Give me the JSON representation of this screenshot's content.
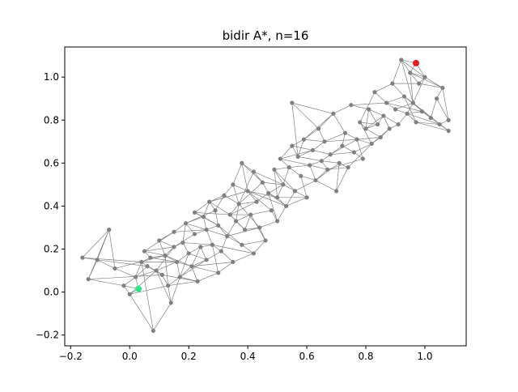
{
  "chart_data": {
    "type": "scatter",
    "title": "bidir A*, n=16",
    "xlabel": "",
    "ylabel": "",
    "xlim": [
      -0.22,
      1.14
    ],
    "ylim": [
      -0.25,
      1.14
    ],
    "xticks": [
      -0.2,
      0.0,
      0.2,
      0.4,
      0.6,
      0.8,
      1.0
    ],
    "yticks": [
      -0.2,
      0.0,
      0.2,
      0.4,
      0.6,
      0.8,
      1.0
    ],
    "xtick_labels": [
      "−0.2",
      "0.0",
      "0.2",
      "0.4",
      "0.6",
      "0.8",
      "1.0"
    ],
    "ytick_labels": [
      "−0.2",
      "0.0",
      "0.2",
      "0.4",
      "0.6",
      "0.8",
      "1.0"
    ],
    "grid": false,
    "colors": {
      "node": "#808080",
      "edge": "#808080",
      "start": "#2ee58a",
      "goal": "#e02020"
    },
    "start": {
      "x": 0.03,
      "y": 0.015
    },
    "goal": {
      "x": 0.97,
      "y": 1.065
    },
    "nodes": [
      [
        -0.16,
        0.16
      ],
      [
        -0.14,
        0.06
      ],
      [
        -0.11,
        0.15
      ],
      [
        -0.07,
        0.29
      ],
      [
        -0.05,
        0.11
      ],
      [
        -0.02,
        0.03
      ],
      [
        0.0,
        -0.01
      ],
      [
        0.02,
        0.07
      ],
      [
        0.04,
        0.14
      ],
      [
        0.05,
        0.19
      ],
      [
        0.06,
        0.12
      ],
      [
        0.07,
        0.16
      ],
      [
        0.08,
        -0.18
      ],
      [
        0.09,
        0.1
      ],
      [
        0.1,
        0.24
      ],
      [
        0.11,
        0.08
      ],
      [
        0.12,
        0.17
      ],
      [
        0.13,
        0.03
      ],
      [
        0.14,
        -0.05
      ],
      [
        0.15,
        0.21
      ],
      [
        0.15,
        0.28
      ],
      [
        0.16,
        0.14
      ],
      [
        0.17,
        0.07
      ],
      [
        0.18,
        0.23
      ],
      [
        0.19,
        0.32
      ],
      [
        0.2,
        0.18
      ],
      [
        0.21,
        0.12
      ],
      [
        0.22,
        0.37
      ],
      [
        0.22,
        0.27
      ],
      [
        0.23,
        0.05
      ],
      [
        0.24,
        0.21
      ],
      [
        0.25,
        0.35
      ],
      [
        0.26,
        0.15
      ],
      [
        0.26,
        0.29
      ],
      [
        0.27,
        0.42
      ],
      [
        0.28,
        0.22
      ],
      [
        0.29,
        0.38
      ],
      [
        0.3,
        0.09
      ],
      [
        0.3,
        0.31
      ],
      [
        0.31,
        0.19
      ],
      [
        0.32,
        0.45
      ],
      [
        0.33,
        0.26
      ],
      [
        0.34,
        0.36
      ],
      [
        0.35,
        0.14
      ],
      [
        0.35,
        0.5
      ],
      [
        0.36,
        0.33
      ],
      [
        0.37,
        0.41
      ],
      [
        0.38,
        0.22
      ],
      [
        0.38,
        0.6
      ],
      [
        0.39,
        0.29
      ],
      [
        0.4,
        0.47
      ],
      [
        0.41,
        0.36
      ],
      [
        0.42,
        0.18
      ],
      [
        0.42,
        0.56
      ],
      [
        0.43,
        0.42
      ],
      [
        0.44,
        0.3
      ],
      [
        0.45,
        0.51
      ],
      [
        0.46,
        0.24
      ],
      [
        0.47,
        0.46
      ],
      [
        0.48,
        0.38
      ],
      [
        0.49,
        0.57
      ],
      [
        0.5,
        0.44
      ],
      [
        0.5,
        0.33
      ],
      [
        0.51,
        0.62
      ],
      [
        0.52,
        0.5
      ],
      [
        0.53,
        0.4
      ],
      [
        0.54,
        0.58
      ],
      [
        0.55,
        0.68
      ],
      [
        0.55,
        0.88
      ],
      [
        0.56,
        0.47
      ],
      [
        0.57,
        0.63
      ],
      [
        0.58,
        0.54
      ],
      [
        0.59,
        0.71
      ],
      [
        0.6,
        0.44
      ],
      [
        0.61,
        0.59
      ],
      [
        0.62,
        0.66
      ],
      [
        0.63,
        0.52
      ],
      [
        0.64,
        0.76
      ],
      [
        0.65,
        0.61
      ],
      [
        0.66,
        0.7
      ],
      [
        0.67,
        0.57
      ],
      [
        0.68,
        0.64
      ],
      [
        0.69,
        0.83
      ],
      [
        0.7,
        0.47
      ],
      [
        0.71,
        0.6
      ],
      [
        0.72,
        0.68
      ],
      [
        0.73,
        0.74
      ],
      [
        0.74,
        0.58
      ],
      [
        0.75,
        0.87
      ],
      [
        0.76,
        0.65
      ],
      [
        0.77,
        0.71
      ],
      [
        0.78,
        0.79
      ],
      [
        0.79,
        0.62
      ],
      [
        0.8,
        0.76
      ],
      [
        0.81,
        0.85
      ],
      [
        0.82,
        0.69
      ],
      [
        0.83,
        0.93
      ],
      [
        0.84,
        0.78
      ],
      [
        0.85,
        0.72
      ],
      [
        0.86,
        0.82
      ],
      [
        0.87,
        0.88
      ],
      [
        0.88,
        0.76
      ],
      [
        0.89,
        0.97
      ],
      [
        0.9,
        0.85
      ],
      [
        0.91,
        0.78
      ],
      [
        0.92,
        1.08
      ],
      [
        0.93,
        0.91
      ],
      [
        0.94,
        0.83
      ],
      [
        0.95,
        1.02
      ],
      [
        0.96,
        0.88
      ],
      [
        0.97,
        0.79
      ],
      [
        0.98,
        0.97
      ],
      [
        0.99,
        0.84
      ],
      [
        1.0,
        1.0
      ],
      [
        1.02,
        0.81
      ],
      [
        1.04,
        0.9
      ],
      [
        1.05,
        0.78
      ],
      [
        1.06,
        0.95
      ],
      [
        1.08,
        0.75
      ],
      [
        1.08,
        0.8
      ]
    ]
  }
}
